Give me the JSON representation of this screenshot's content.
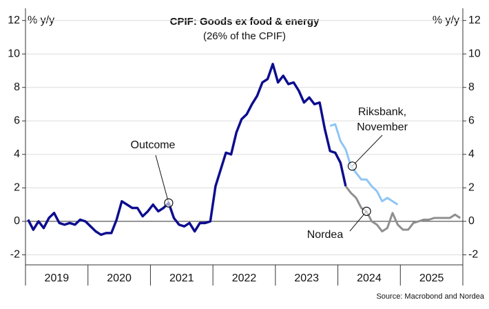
{
  "chart_data": {
    "type": "line",
    "title": "CPIF: Goods ex food & energy",
    "subtitle": "(26% of the CPIF)",
    "ylabel": "% y/y",
    "y2label": "% y/y",
    "source": "Source: Macrobond and Nordea",
    "categories": [
      null,
      null,
      null,
      null,
      null,
      null,
      "2019",
      null,
      null,
      null,
      null,
      null,
      null,
      null,
      null,
      null,
      null,
      null,
      "2020",
      null,
      null,
      null,
      null,
      null,
      null,
      null,
      null,
      null,
      null,
      null,
      "2021",
      null,
      null,
      null,
      null,
      null,
      null,
      null,
      null,
      null,
      null,
      null,
      "2022",
      null,
      null,
      null,
      null,
      null,
      null,
      null,
      null,
      null,
      null,
      null,
      "2023",
      null,
      null,
      null,
      null,
      null,
      null,
      null,
      null,
      null,
      null,
      null,
      "2024",
      null,
      null,
      null,
      null,
      null,
      null,
      null,
      null,
      null,
      null,
      null,
      "2025",
      null,
      null,
      null,
      null,
      null
    ],
    "series": [
      {
        "name": "Outcome",
        "color": "#0d0d8f",
        "values": [
          0.1,
          -0.5,
          0.0,
          -0.4,
          0.2,
          0.5,
          -0.1,
          -0.2,
          -0.1,
          -0.2,
          0.1,
          0.0,
          -0.3,
          -0.6,
          -0.8,
          -0.7,
          -0.7,
          0.1,
          1.2,
          1.0,
          0.8,
          0.8,
          0.3,
          0.6,
          1.0,
          0.6,
          0.8,
          1.1,
          0.2,
          -0.2,
          -0.3,
          -0.1,
          -0.6,
          -0.1,
          -0.1,
          0.0,
          2.1,
          3.1,
          4.1,
          4.0,
          5.3,
          6.1,
          6.4,
          7.0,
          7.5,
          8.3,
          8.5,
          9.4,
          8.3,
          8.7,
          8.2,
          8.3,
          7.8,
          7.1,
          7.4,
          7.0,
          7.1,
          5.5,
          4.2,
          4.1,
          3.5,
          2.1,
          null,
          null,
          null,
          null,
          null,
          null,
          null,
          null,
          null,
          null,
          null,
          null,
          null,
          null,
          null,
          null,
          null,
          null,
          null,
          null,
          null,
          null
        ]
      },
      {
        "name": "Riksbank, November",
        "color": "#8ec5f5",
        "values": [
          null,
          null,
          null,
          null,
          null,
          null,
          null,
          null,
          null,
          null,
          null,
          null,
          null,
          null,
          null,
          null,
          null,
          null,
          null,
          null,
          null,
          null,
          null,
          null,
          null,
          null,
          null,
          null,
          null,
          null,
          null,
          null,
          null,
          null,
          null,
          null,
          null,
          null,
          null,
          null,
          null,
          null,
          null,
          null,
          null,
          null,
          null,
          null,
          null,
          null,
          null,
          null,
          null,
          null,
          null,
          null,
          null,
          null,
          5.7,
          5.8,
          4.8,
          4.3,
          3.3,
          2.9,
          2.5,
          2.5,
          2.1,
          1.8,
          1.2,
          1.4,
          1.2,
          1.0,
          null,
          null,
          null,
          null,
          null,
          null,
          null,
          null,
          null,
          null,
          null,
          null
        ]
      },
      {
        "name": "Nordea",
        "color": "#8f8f8f",
        "values": [
          null,
          null,
          null,
          null,
          null,
          null,
          null,
          null,
          null,
          null,
          null,
          null,
          null,
          null,
          null,
          null,
          null,
          null,
          null,
          null,
          null,
          null,
          null,
          null,
          null,
          null,
          null,
          null,
          null,
          null,
          null,
          null,
          null,
          null,
          null,
          null,
          null,
          null,
          null,
          null,
          null,
          null,
          null,
          null,
          null,
          null,
          null,
          null,
          null,
          null,
          null,
          null,
          null,
          null,
          null,
          null,
          null,
          null,
          null,
          null,
          null,
          2.1,
          1.7,
          1.4,
          0.8,
          0.6,
          0.0,
          -0.2,
          -0.6,
          -0.4,
          0.5,
          -0.2,
          -0.5,
          -0.5,
          -0.1,
          0.0,
          0.1,
          0.1,
          0.2,
          0.2,
          0.2,
          0.2,
          0.4,
          0.2
        ]
      }
    ],
    "annotations": [
      "Outcome",
      "Riksbank,",
      "November",
      "Nordea"
    ],
    "ylim": [
      -2.6,
      12.4
    ],
    "yticks": [
      -2,
      0,
      2,
      4,
      6,
      8,
      10,
      12
    ],
    "y2lim": [
      -2.6,
      12.4
    ],
    "y2ticks": [
      -2,
      0,
      2,
      4,
      6,
      8,
      10,
      12
    ],
    "grid": true
  }
}
